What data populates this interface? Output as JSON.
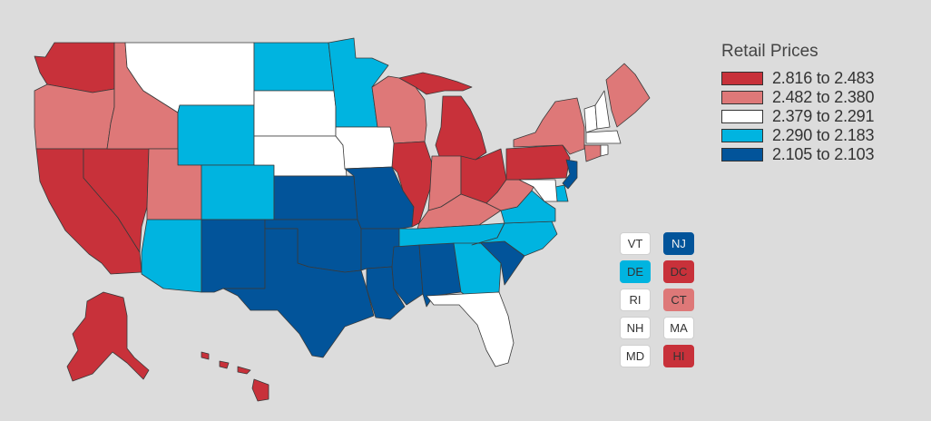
{
  "legend": {
    "title": "Retail Prices",
    "bins": [
      {
        "label": "2.816 to 2.483",
        "color": "#c8313a"
      },
      {
        "label": "2.482 to 2.380",
        "color": "#de7878"
      },
      {
        "label": "2.379 to 2.291",
        "color": "#ffffff"
      },
      {
        "label": "2.290 to 2.183",
        "color": "#00b4e0"
      },
      {
        "label": "2.105 to 2.103",
        "color": "#02549a"
      }
    ]
  },
  "small_states": [
    {
      "code": "VT",
      "bin": 2
    },
    {
      "code": "NJ",
      "bin": 4
    },
    {
      "code": "DE",
      "bin": 3
    },
    {
      "code": "DC",
      "bin": 0
    },
    {
      "code": "RI",
      "bin": 2
    },
    {
      "code": "CT",
      "bin": 1
    },
    {
      "code": "NH",
      "bin": 2
    },
    {
      "code": "MA",
      "bin": 2
    },
    {
      "code": "MD",
      "bin": 2
    },
    {
      "code": "HI",
      "bin": 0
    }
  ],
  "state_bins": {
    "WA": 0,
    "OR": 1,
    "CA": 0,
    "NV": 0,
    "ID": 1,
    "MT": 2,
    "WY": 3,
    "UT": 1,
    "AZ": 3,
    "CO": 3,
    "NM": 4,
    "ND": 3,
    "SD": 2,
    "NE": 2,
    "KS": 4,
    "OK": 4,
    "TX": 4,
    "MN": 3,
    "IA": 2,
    "MO": 4,
    "AR": 4,
    "LA": 4,
    "WI": 1,
    "IL": 0,
    "MI": 0,
    "IN": 1,
    "OH": 0,
    "KY": 1,
    "TN": 3,
    "MS": 4,
    "AL": 4,
    "GA": 3,
    "FL": 2,
    "SC": 4,
    "NC": 3,
    "VA": 3,
    "WV": 1,
    "PA": 0,
    "NY": 1,
    "ME": 1,
    "VT": 2,
    "NH": 2,
    "MA": 2,
    "CT": 1,
    "RI": 2,
    "NJ": 4,
    "DE": 3,
    "MD": 2,
    "AK": 0,
    "HI": 0
  }
}
